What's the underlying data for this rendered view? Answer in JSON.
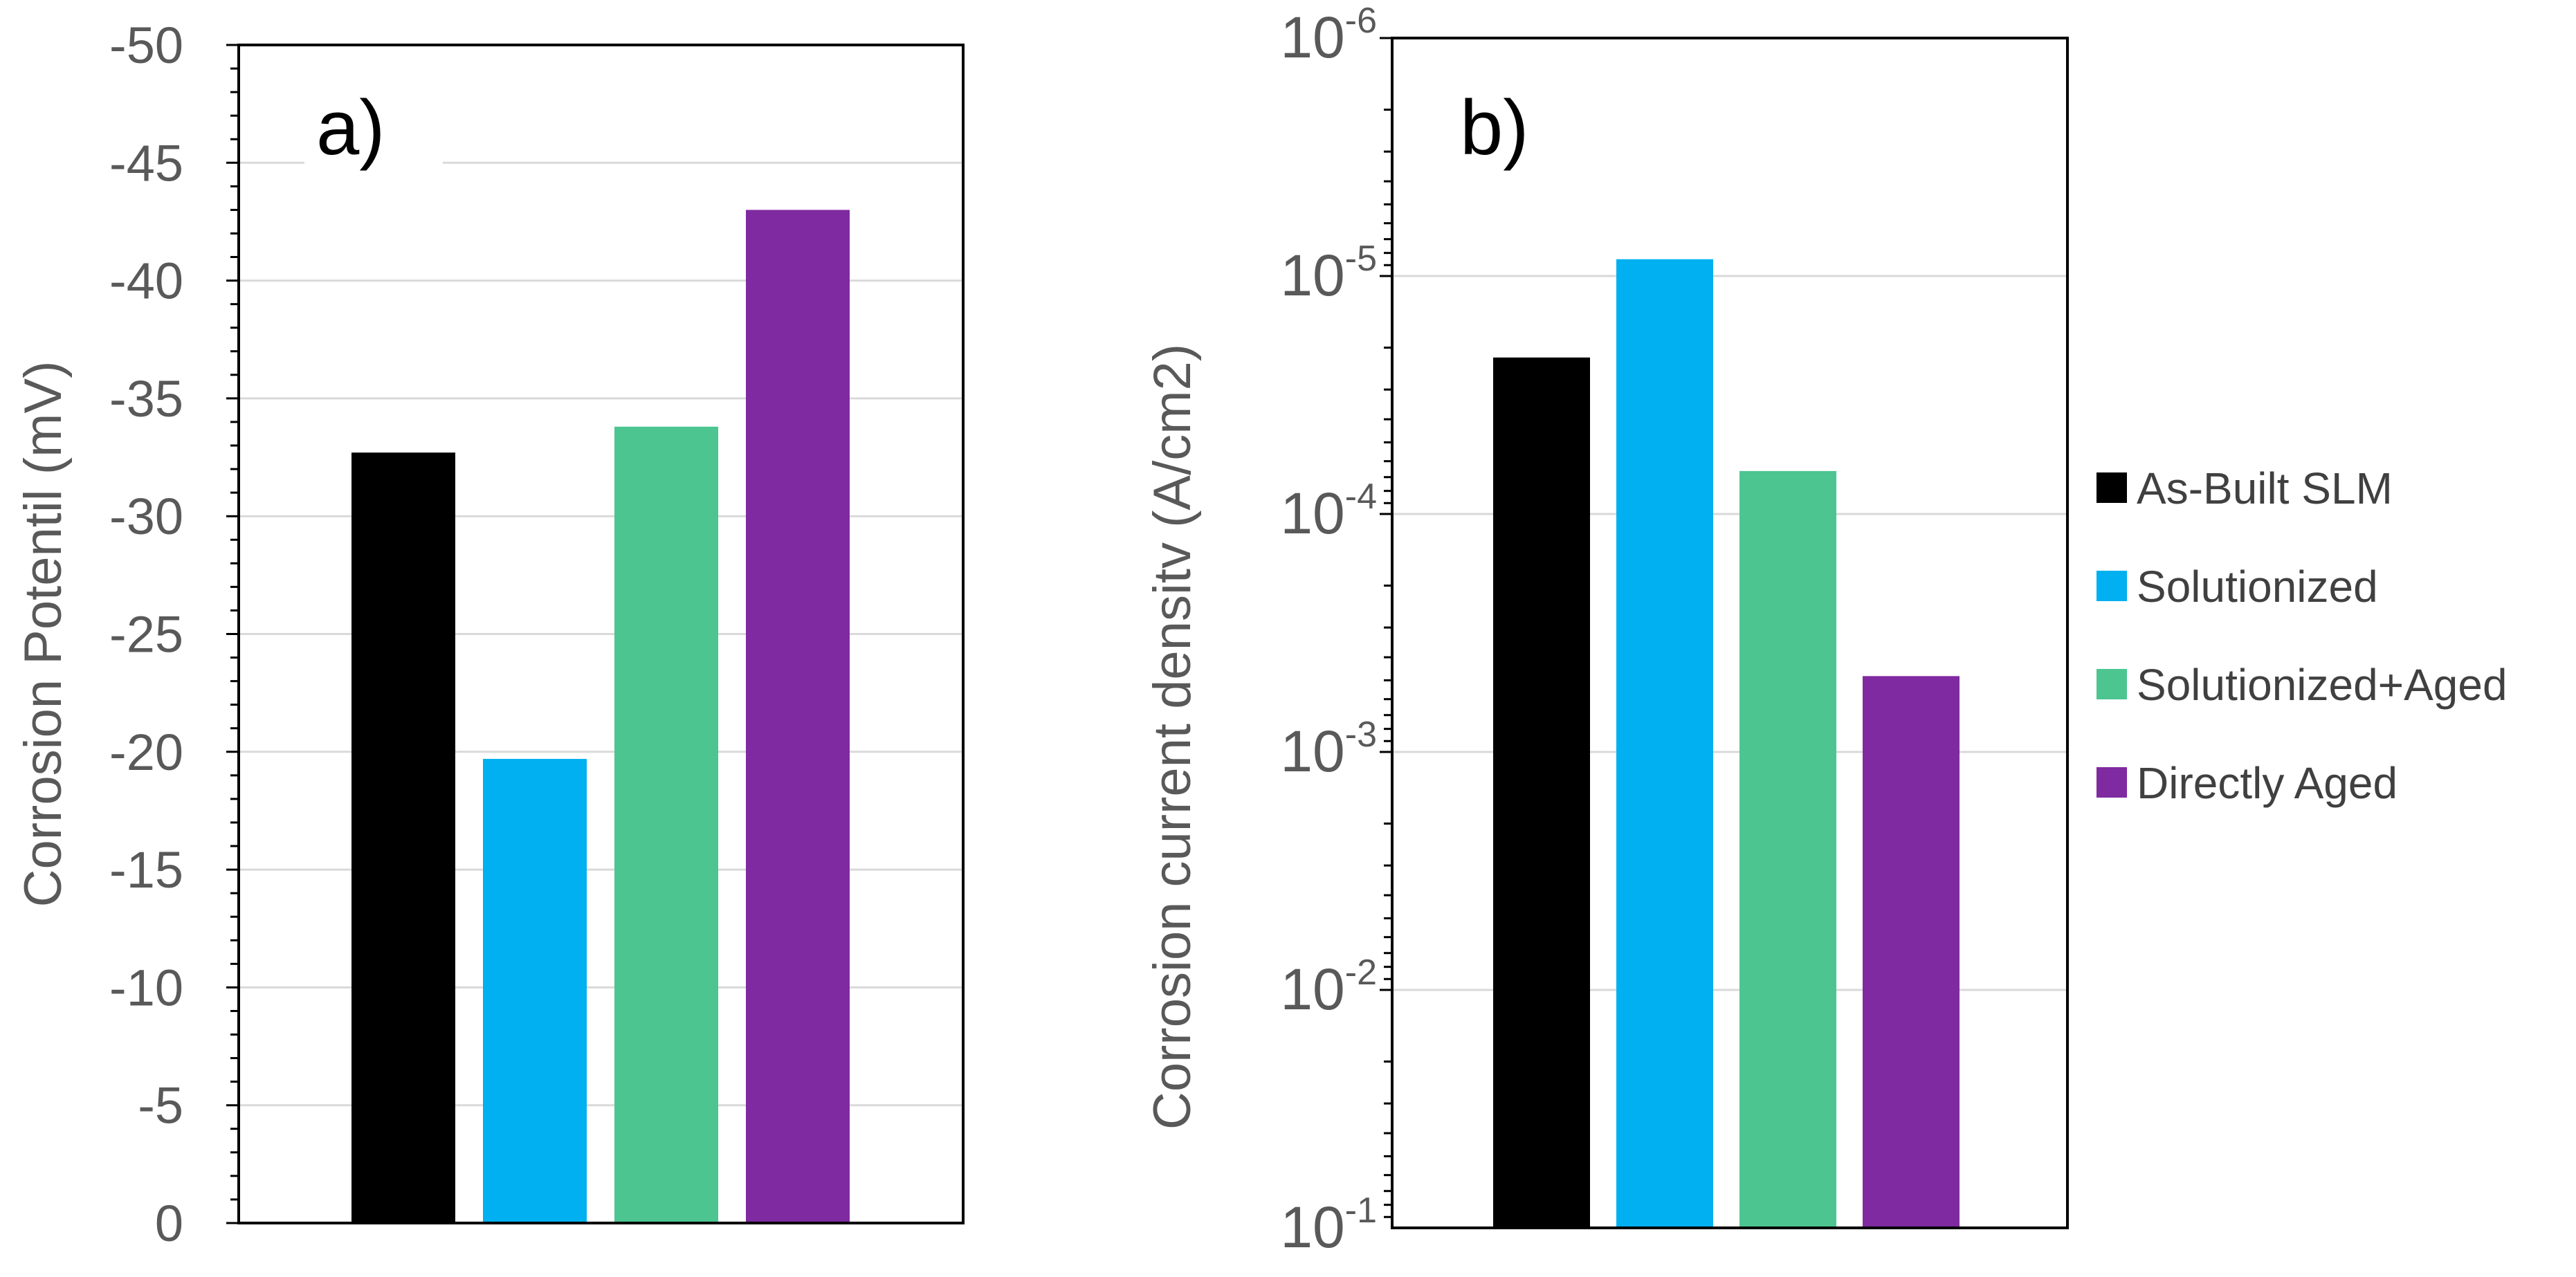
{
  "colors": {
    "as_built": "#000000",
    "solutionized": "#00b0f0",
    "solutionized_aged": "#4cc591",
    "directly_aged": "#7f2aa1",
    "gridline": "#d9d9d9",
    "axis": "#000000",
    "tick_text": "#595959"
  },
  "chart_data": [
    {
      "panel": "a)",
      "type": "bar",
      "ylabel": "Corrosion Potentil (mV)",
      "xlabel": "",
      "title": "",
      "ylim": [
        0,
        -50
      ],
      "y_ticks": [
        0,
        -5,
        -10,
        -15,
        -20,
        -25,
        -30,
        -35,
        -40,
        -45,
        -50
      ],
      "y_tick_labels": [
        "0",
        "-5",
        "-10",
        "-15",
        "-20",
        "-25",
        "-30",
        "-35",
        "-40",
        "-45",
        "-50"
      ],
      "categories": [
        "As-Built SLM",
        "Solutionized",
        "Solutionized+Aged",
        "Directly Aged"
      ],
      "values": [
        -32.7,
        -19.7,
        -33.8,
        -43.0
      ],
      "grid": true
    },
    {
      "panel": "b)",
      "type": "bar",
      "scale": "log",
      "ylabel": "Corrosion current densitv (A/cm2)",
      "xlabel": "",
      "title": "",
      "ylim": [
        0.1,
        1e-06
      ],
      "y_ticks": [
        0.1,
        0.01,
        0.001,
        0.0001,
        1e-05,
        1e-06
      ],
      "y_tick_labels": [
        {
          "base": "10",
          "exp": "-1"
        },
        {
          "base": "10",
          "exp": "-2"
        },
        {
          "base": "10",
          "exp": "-3"
        },
        {
          "base": "10",
          "exp": "-4"
        },
        {
          "base": "10",
          "exp": "-5"
        },
        {
          "base": "10",
          "exp": "-6"
        }
      ],
      "categories": [
        "As-Built SLM",
        "Solutionized",
        "Solutionized+Aged",
        "Directly Aged"
      ],
      "values": [
        2.2e-05,
        8.5e-06,
        6.6e-05,
        0.00048
      ],
      "grid": true
    }
  ],
  "legend": {
    "placement": "right",
    "items": [
      {
        "label": "As-Built SLM",
        "color_key": "as_built"
      },
      {
        "label": "Solutionized",
        "color_key": "solutionized"
      },
      {
        "label": "Solutionized+Aged",
        "color_key": "solutionized_aged"
      },
      {
        "label": "Directly Aged",
        "color_key": "directly_aged"
      }
    ]
  }
}
